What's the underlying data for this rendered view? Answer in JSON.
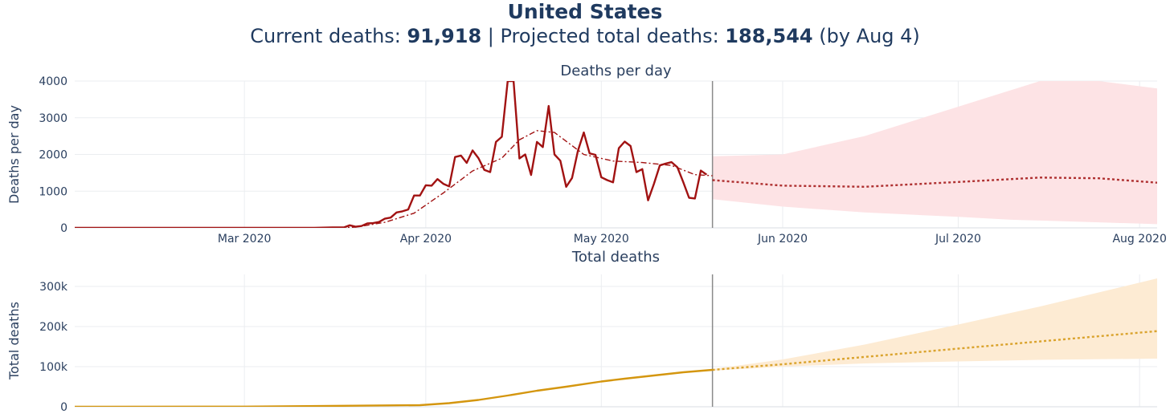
{
  "header": {
    "title": "United States",
    "subtitle_parts": {
      "current_label": "Current deaths: ",
      "current_value": "91,918",
      "sep": " | Projected total deaths: ",
      "projected_value": "188,544",
      "suffix": " (by Aug 4)"
    }
  },
  "colors": {
    "daily_line": "#a11212",
    "daily_band": "#fde3e5",
    "total_line": "#d4960f",
    "total_band": "#fdebd3",
    "grid": "#ebedf0",
    "divider": "#8a8a8a"
  },
  "chart_data": [
    {
      "type": "line",
      "title": "Deaths per day",
      "ylabel": "Deaths per day",
      "xlabel": "",
      "ylim": [
        0,
        4000
      ],
      "xlim": [
        "2020-02-01",
        "2020-08-04"
      ],
      "yticks": [
        0,
        1000,
        2000,
        3000,
        4000
      ],
      "ytick_labels": [
        "0",
        "1000",
        "2000",
        "3000",
        "4000"
      ],
      "xticks": [
        "2020-03-01",
        "2020-04-01",
        "2020-05-01",
        "2020-06-01",
        "2020-07-01",
        "2020-08-01"
      ],
      "xtick_labels": [
        "Mar 2020",
        "Apr 2020",
        "May 2020",
        "Jun 2020",
        "Jul 2020",
        "Aug 2020"
      ],
      "grid": true,
      "projection_start": "2020-05-20",
      "observed": {
        "x": [
          "2020-02-01",
          "2020-03-13",
          "2020-03-16",
          "2020-03-18",
          "2020-03-19",
          "2020-03-20",
          "2020-03-21",
          "2020-03-22",
          "2020-03-23",
          "2020-03-24",
          "2020-03-25",
          "2020-03-26",
          "2020-03-27",
          "2020-03-28",
          "2020-03-29",
          "2020-03-30",
          "2020-03-31",
          "2020-04-01",
          "2020-04-02",
          "2020-04-03",
          "2020-04-04",
          "2020-04-05",
          "2020-04-06",
          "2020-04-07",
          "2020-04-08",
          "2020-04-09",
          "2020-04-10",
          "2020-04-11",
          "2020-04-12",
          "2020-04-13",
          "2020-04-14",
          "2020-04-15",
          "2020-04-16",
          "2020-04-17",
          "2020-04-18",
          "2020-04-19",
          "2020-04-20",
          "2020-04-21",
          "2020-04-22",
          "2020-04-23",
          "2020-04-24",
          "2020-04-25",
          "2020-04-26",
          "2020-04-27",
          "2020-04-28",
          "2020-04-29",
          "2020-04-30",
          "2020-05-01",
          "2020-05-02",
          "2020-05-03",
          "2020-05-04",
          "2020-05-05",
          "2020-05-06",
          "2020-05-07",
          "2020-05-08",
          "2020-05-09",
          "2020-05-10",
          "2020-05-11",
          "2020-05-12",
          "2020-05-13",
          "2020-05-14",
          "2020-05-15",
          "2020-05-16",
          "2020-05-17",
          "2020-05-18",
          "2020-05-19"
        ],
        "y": [
          0,
          0,
          10,
          10,
          70,
          30,
          50,
          120,
          130,
          160,
          250,
          280,
          420,
          450,
          500,
          880,
          880,
          1160,
          1150,
          1330,
          1200,
          1130,
          1930,
          1970,
          1770,
          2110,
          1900,
          1580,
          1520,
          2340,
          2480,
          4000,
          4000,
          1890,
          2000,
          1440,
          2340,
          2200,
          3320,
          2000,
          1830,
          1120,
          1360,
          2100,
          2600,
          2030,
          1990,
          1380,
          1300,
          1240,
          2170,
          2350,
          2230,
          1520,
          1600,
          750,
          1200,
          1700,
          1750,
          1790,
          1650,
          1250,
          820,
          800,
          1560,
          1450
        ]
      },
      "smoothed": {
        "x": [
          "2020-02-01",
          "2020-03-16",
          "2020-03-20",
          "2020-03-25",
          "2020-03-30",
          "2020-04-04",
          "2020-04-09",
          "2020-04-14",
          "2020-04-17",
          "2020-04-20",
          "2020-04-23",
          "2020-04-28",
          "2020-05-03",
          "2020-05-08",
          "2020-05-13",
          "2020-05-17",
          "2020-05-20"
        ],
        "y": [
          0,
          0,
          20,
          150,
          400,
          950,
          1550,
          1900,
          2400,
          2650,
          2600,
          2000,
          1820,
          1780,
          1700,
          1450,
          1420
        ]
      },
      "projection": {
        "x": [
          "2020-05-20",
          "2020-06-01",
          "2020-06-15",
          "2020-07-01",
          "2020-07-15",
          "2020-07-25",
          "2020-08-04"
        ],
        "y": [
          1300,
          1150,
          1120,
          1250,
          1370,
          1350,
          1230
        ]
      },
      "band": {
        "x": [
          "2020-05-20",
          "2020-06-01",
          "2020-06-15",
          "2020-07-01",
          "2020-07-10",
          "2020-07-15",
          "2020-07-25",
          "2020-08-04"
        ],
        "upper": [
          1950,
          2000,
          2500,
          3300,
          3750,
          4000,
          4000,
          3800
        ],
        "lower": [
          780,
          580,
          420,
          300,
          220,
          200,
          150,
          100
        ]
      }
    },
    {
      "type": "line",
      "title": "Total deaths",
      "ylabel": "Total deaths",
      "xlabel": "",
      "ylim": [
        0,
        330000
      ],
      "xlim": [
        "2020-02-01",
        "2020-08-04"
      ],
      "yticks": [
        0,
        100000,
        200000,
        300000
      ],
      "ytick_labels": [
        "0",
        "100k",
        "200k",
        "300k"
      ],
      "grid": true,
      "projection_start": "2020-05-20",
      "observed": {
        "x": [
          "2020-02-01",
          "2020-03-01",
          "2020-03-31",
          "2020-04-05",
          "2020-04-10",
          "2020-04-15",
          "2020-04-20",
          "2020-04-25",
          "2020-05-01",
          "2020-05-05",
          "2020-05-10",
          "2020-05-15",
          "2020-05-20"
        ],
        "y": [
          0,
          500,
          4000,
          9000,
          17000,
          28000,
          40000,
          50000,
          63000,
          70000,
          78000,
          86000,
          91918
        ]
      },
      "projection": {
        "x": [
          "2020-05-20",
          "2020-06-01",
          "2020-07-01",
          "2020-08-04"
        ],
        "y": [
          91918,
          106000,
          145000,
          188544
        ]
      },
      "band": {
        "x": [
          "2020-05-20",
          "2020-06-01",
          "2020-06-15",
          "2020-07-01",
          "2020-07-15",
          "2020-08-04"
        ],
        "upper": [
          94000,
          118000,
          155000,
          205000,
          250000,
          320000
        ],
        "lower": [
          90000,
          100000,
          108000,
          113000,
          117000,
          120000
        ]
      }
    }
  ]
}
